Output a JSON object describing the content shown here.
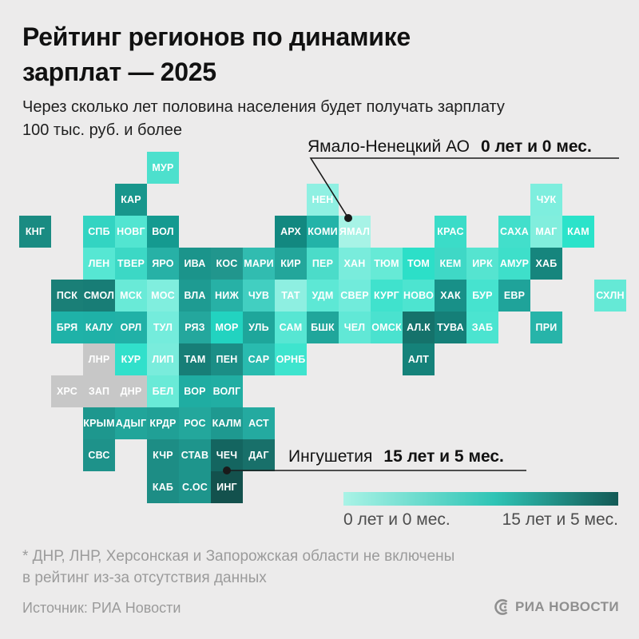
{
  "title": {
    "line1": "Рейтинг регионов по динамике",
    "line2": "зарплат — 2025"
  },
  "subtitle": {
    "line1": "Через сколько лет половина населения будет получать зарплату",
    "line2": "100 тыс. руб. и более"
  },
  "annotations": {
    "max": {
      "region": "Ямало-Ненецкий АО",
      "value": "0 лет и 0 мес."
    },
    "min": {
      "region": "Ингушетия",
      "value": "15 лет и 5 мес."
    }
  },
  "legend": {
    "min_label": "0 лет и 0 мес.",
    "max_label": "15 лет и 5 мес.",
    "gradient_start": "#a9f3e6",
    "gradient_mid": "#2fc4b5",
    "gradient_end": "#135955"
  },
  "footnote": {
    "line1": "* ДНР, ЛНР, Херсонская и Запорожская области не включены",
    "line2": "в рейтинг из-за отсутствия данных"
  },
  "source": "Источник: РИА Новости",
  "logo": "РИА НОВОСТИ",
  "colors": {
    "background": "#ecebeb",
    "excluded_tile": "#c7c7c7",
    "tile_text": "#ffffff",
    "muted_text": "#9b9b9b"
  },
  "chart_data": {
    "type": "heatmap",
    "title": "Рейтинг регионов по динамике зарплат — 2025",
    "value_range": [
      "0 лет и 0 мес.",
      "15 лет и 5 мес."
    ],
    "excluded_regions": [
      "ДНР",
      "ЛНР",
      "ХРС",
      "ЗАП"
    ],
    "tiles": [
      {
        "label": "МУР",
        "row": 0,
        "col": 4,
        "color": "#4de0cd"
      },
      {
        "label": "КАР",
        "row": 1,
        "col": 3,
        "color": "#18968c"
      },
      {
        "label": "НЕН",
        "row": 1,
        "col": 9,
        "color": "#8ff0e2"
      },
      {
        "label": "ЧУК",
        "row": 1,
        "col": 16,
        "color": "#7eeede"
      },
      {
        "label": "КНГ",
        "row": 2,
        "col": 0,
        "color": "#1a8b82"
      },
      {
        "label": "СПБ",
        "row": 2,
        "col": 2,
        "color": "#33d4c2"
      },
      {
        "label": "НОВГ",
        "row": 2,
        "col": 3,
        "color": "#52e5d1"
      },
      {
        "label": "ВОЛ",
        "row": 2,
        "col": 4,
        "color": "#149a90"
      },
      {
        "label": "АРХ",
        "row": 2,
        "col": 8,
        "color": "#128880"
      },
      {
        "label": "КОМИ",
        "row": 2,
        "col": 9,
        "color": "#23b3a8"
      },
      {
        "label": "ЯМАЛ",
        "row": 2,
        "col": 10,
        "color": "#a7f3e6"
      },
      {
        "label": "КРАС",
        "row": 2,
        "col": 13,
        "color": "#3bdcc8"
      },
      {
        "label": "САХА",
        "row": 2,
        "col": 15,
        "color": "#42dfcb"
      },
      {
        "label": "МАГ",
        "row": 2,
        "col": 16,
        "color": "#81eedd"
      },
      {
        "label": "КАМ",
        "row": 2,
        "col": 17,
        "color": "#2be3ca"
      },
      {
        "label": "ЛЕН",
        "row": 3,
        "col": 2,
        "color": "#56e7d3"
      },
      {
        "label": "ТВЕР",
        "row": 3,
        "col": 3,
        "color": "#3cd8c5"
      },
      {
        "label": "ЯРО",
        "row": 3,
        "col": 4,
        "color": "#27b1a6"
      },
      {
        "label": "ИВА",
        "row": 3,
        "col": 5,
        "color": "#1b948b"
      },
      {
        "label": "КОС",
        "row": 3,
        "col": 6,
        "color": "#21968d"
      },
      {
        "label": "МАРИ",
        "row": 3,
        "col": 7,
        "color": "#31bcb0"
      },
      {
        "label": "КИР",
        "row": 3,
        "col": 8,
        "color": "#23a69b"
      },
      {
        "label": "ПЕР",
        "row": 3,
        "col": 9,
        "color": "#4bdcc9"
      },
      {
        "label": "ХАН",
        "row": 3,
        "col": 10,
        "color": "#79ecdc"
      },
      {
        "label": "ТЮМ",
        "row": 3,
        "col": 11,
        "color": "#66ead6"
      },
      {
        "label": "ТОМ",
        "row": 3,
        "col": 12,
        "color": "#2cdfc8"
      },
      {
        "label": "КЕМ",
        "row": 3,
        "col": 13,
        "color": "#3fd8c6"
      },
      {
        "label": "ИРК",
        "row": 3,
        "col": 14,
        "color": "#55e4d0"
      },
      {
        "label": "АМУР",
        "row": 3,
        "col": 15,
        "color": "#3edfca"
      },
      {
        "label": "ХАБ",
        "row": 3,
        "col": 16,
        "color": "#16857d"
      },
      {
        "label": "ПСК",
        "row": 4,
        "col": 1,
        "color": "#1a7f77"
      },
      {
        "label": "СМОЛ",
        "row": 4,
        "col": 2,
        "color": "#187d76"
      },
      {
        "label": "МСК",
        "row": 4,
        "col": 3,
        "color": "#69ead7"
      },
      {
        "label": "МОС",
        "row": 4,
        "col": 4,
        "color": "#80eede"
      },
      {
        "label": "ВЛА",
        "row": 4,
        "col": 5,
        "color": "#1e9b92"
      },
      {
        "label": "НИЖ",
        "row": 4,
        "col": 6,
        "color": "#27b1a6"
      },
      {
        "label": "ЧУВ",
        "row": 4,
        "col": 7,
        "color": "#42cfc1"
      },
      {
        "label": "ТАТ",
        "row": 4,
        "col": 8,
        "color": "#8eefe1"
      },
      {
        "label": "УДМ",
        "row": 4,
        "col": 9,
        "color": "#5de8d5"
      },
      {
        "label": "СВЕР",
        "row": 4,
        "col": 10,
        "color": "#71ebdb"
      },
      {
        "label": "КУРГ",
        "row": 4,
        "col": 11,
        "color": "#40e2cd"
      },
      {
        "label": "НОВО",
        "row": 4,
        "col": 12,
        "color": "#4de4d0"
      },
      {
        "label": "ХАК",
        "row": 4,
        "col": 13,
        "color": "#189088"
      },
      {
        "label": "БУР",
        "row": 4,
        "col": 14,
        "color": "#46e3cf"
      },
      {
        "label": "ЕВР",
        "row": 4,
        "col": 15,
        "color": "#1fa39a"
      },
      {
        "label": "СХЛН",
        "row": 4,
        "col": 18,
        "color": "#65e9d6"
      },
      {
        "label": "БРЯ",
        "row": 5,
        "col": 1,
        "color": "#1fb2a8"
      },
      {
        "label": "КАЛУ",
        "row": 5,
        "col": 2,
        "color": "#1fb1a7"
      },
      {
        "label": "ОРЛ",
        "row": 5,
        "col": 3,
        "color": "#21b1a7"
      },
      {
        "label": "ТУЛ",
        "row": 5,
        "col": 4,
        "color": "#74ecdc"
      },
      {
        "label": "РЯЗ",
        "row": 5,
        "col": 5,
        "color": "#24a79d"
      },
      {
        "label": "МОР",
        "row": 5,
        "col": 6,
        "color": "#22d3c0"
      },
      {
        "label": "УЛЬ",
        "row": 5,
        "col": 7,
        "color": "#1ea69b"
      },
      {
        "label": "САМ",
        "row": 5,
        "col": 8,
        "color": "#57e6d3"
      },
      {
        "label": "БШК",
        "row": 5,
        "col": 9,
        "color": "#20a69b"
      },
      {
        "label": "ЧЕЛ",
        "row": 5,
        "col": 10,
        "color": "#61e8d6"
      },
      {
        "label": "ОМСК",
        "row": 5,
        "col": 11,
        "color": "#4ae2cf"
      },
      {
        "label": "АЛ.К",
        "row": 5,
        "col": 12,
        "color": "#15726b"
      },
      {
        "label": "ТУВА",
        "row": 5,
        "col": 13,
        "color": "#157f78"
      },
      {
        "label": "ЗАБ",
        "row": 5,
        "col": 14,
        "color": "#4be4d0"
      },
      {
        "label": "ПРИ",
        "row": 5,
        "col": 16,
        "color": "#27b4a9"
      },
      {
        "label": "ЛНР",
        "row": 6,
        "col": 2,
        "color": "#c7c7c7"
      },
      {
        "label": "КУР",
        "row": 6,
        "col": 3,
        "color": "#31e0cb"
      },
      {
        "label": "ЛИП",
        "row": 6,
        "col": 4,
        "color": "#79ecdc"
      },
      {
        "label": "ТАМ",
        "row": 6,
        "col": 5,
        "color": "#177e77"
      },
      {
        "label": "ПЕН",
        "row": 6,
        "col": 6,
        "color": "#1b8e86"
      },
      {
        "label": "САР",
        "row": 6,
        "col": 7,
        "color": "#29bbaf"
      },
      {
        "label": "ОРНБ",
        "row": 6,
        "col": 8,
        "color": "#3ee4ce"
      },
      {
        "label": "АЛТ",
        "row": 6,
        "col": 12,
        "color": "#15827a"
      },
      {
        "label": "ХРС",
        "row": 7,
        "col": 1,
        "color": "#c7c7c7"
      },
      {
        "label": "ЗАП",
        "row": 7,
        "col": 2,
        "color": "#c7c7c7"
      },
      {
        "label": "ДНР",
        "row": 7,
        "col": 3,
        "color": "#c7c7c7"
      },
      {
        "label": "БЕЛ",
        "row": 7,
        "col": 4,
        "color": "#69ead7"
      },
      {
        "label": "ВОР",
        "row": 7,
        "col": 5,
        "color": "#1fada2"
      },
      {
        "label": "ВОЛГ",
        "row": 7,
        "col": 6,
        "color": "#21aea3"
      },
      {
        "label": "КРЫМ",
        "row": 8,
        "col": 2,
        "color": "#1e978e"
      },
      {
        "label": "АДЫГ",
        "row": 8,
        "col": 3,
        "color": "#21a59a"
      },
      {
        "label": "КРДР",
        "row": 8,
        "col": 4,
        "color": "#20a096"
      },
      {
        "label": "РОС",
        "row": 8,
        "col": 5,
        "color": "#23a79c"
      },
      {
        "label": "КАЛМ",
        "row": 8,
        "col": 6,
        "color": "#1e9990"
      },
      {
        "label": "АСТ",
        "row": 8,
        "col": 7,
        "color": "#24aaa0"
      },
      {
        "label": "СВС",
        "row": 9,
        "col": 2,
        "color": "#1e928a"
      },
      {
        "label": "КЧР",
        "row": 9,
        "col": 4,
        "color": "#1d8d85"
      },
      {
        "label": "СТАВ",
        "row": 9,
        "col": 5,
        "color": "#1e958c"
      },
      {
        "label": "ЧЕЧ",
        "row": 9,
        "col": 6,
        "color": "#146560"
      },
      {
        "label": "ДАГ",
        "row": 9,
        "col": 7,
        "color": "#18706a"
      },
      {
        "label": "КАБ",
        "row": 10,
        "col": 4,
        "color": "#1d8d85"
      },
      {
        "label": "С.ОС",
        "row": 10,
        "col": 5,
        "color": "#1e958c"
      },
      {
        "label": "ИНГ",
        "row": 10,
        "col": 6,
        "color": "#13514d"
      }
    ]
  }
}
